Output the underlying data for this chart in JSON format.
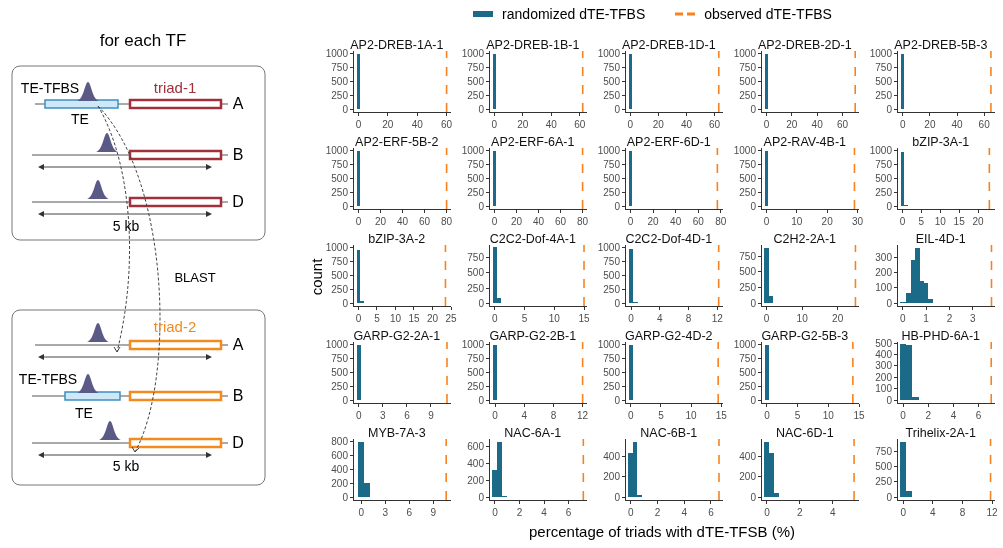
{
  "chart_data": [
    {
      "type": "other",
      "title": "for each TF",
      "annotations": [
        "TE-TFBS",
        "TE",
        "triad-1",
        "A",
        "B",
        "D",
        "5 kb",
        "BLAST",
        "triad-2",
        "A",
        "TE-TFBS",
        "TE",
        "B",
        "D",
        "5 kb"
      ]
    },
    {
      "type": "histogram",
      "title": "AP2-DREB-1A-1",
      "series": [
        {
          "name": "randomized dTE-TFBS",
          "color": "#1b6a87",
          "values": [
            1000
          ]
        }
      ],
      "bins": [
        -1.2,
        1.2
      ],
      "xlim": [
        -3,
        63
      ],
      "xticks": [
        0,
        20,
        40,
        60
      ],
      "ylim": [
        -50,
        1050
      ],
      "yticks": [
        0,
        250,
        500,
        750,
        1000
      ],
      "ref_lines": [
        {
          "axis": "x",
          "value": 60,
          "label": "observed dTE-TFBS",
          "color": "#f8821f",
          "line_style": "dashed"
        }
      ],
      "legend": "top"
    },
    {
      "type": "histogram",
      "title": "AP2-DREB-1B-1",
      "color": "#1b6a87",
      "values": [
        1000
      ],
      "bins": [
        -1.2,
        1.2
      ],
      "xlim": [
        -3,
        65
      ],
      "xticks": [
        0,
        20,
        40,
        60
      ],
      "ylim": [
        -50,
        1050
      ],
      "yticks": [
        0,
        250,
        500,
        750,
        1000
      ],
      "ref_lines": [
        {
          "axis": "x",
          "value": 62,
          "color": "#f8821f",
          "line_style": "dashed"
        }
      ]
    },
    {
      "type": "histogram",
      "title": "AP2-DREB-1D-1",
      "color": "#1b6a87",
      "values": [
        1000
      ],
      "bins": [
        -1.2,
        1.2
      ],
      "xlim": [
        -3,
        66
      ],
      "xticks": [
        0,
        20,
        40,
        60
      ],
      "ylim": [
        -50,
        1050
      ],
      "yticks": [
        0,
        250,
        500,
        750,
        1000
      ],
      "ref_lines": [
        {
          "axis": "x",
          "value": 63,
          "color": "#f8821f",
          "line_style": "dashed"
        }
      ]
    },
    {
      "type": "histogram",
      "title": "AP2-DREB-2D-1",
      "color": "#1b6a87",
      "values": [
        1000
      ],
      "bins": [
        -1.2,
        1.2
      ],
      "xlim": [
        -3.5,
        73
      ],
      "xticks": [
        0,
        20,
        40,
        60
      ],
      "ylim": [
        -50,
        1050
      ],
      "yticks": [
        0,
        250,
        500,
        750,
        1000
      ],
      "ref_lines": [
        {
          "axis": "x",
          "value": 70,
          "color": "#f8821f",
          "line_style": "dashed"
        }
      ]
    },
    {
      "type": "histogram",
      "title": "AP2-DREB-5B-3",
      "color": "#1b6a87",
      "values": [
        1000
      ],
      "bins": [
        -1.2,
        1.2
      ],
      "xlim": [
        -3.5,
        68
      ],
      "xticks": [
        0,
        20,
        40,
        60
      ],
      "ylim": [
        -50,
        1050
      ],
      "yticks": [
        0,
        250,
        500,
        750,
        1000
      ],
      "ref_lines": [
        {
          "axis": "x",
          "value": 65,
          "color": "#f8821f",
          "line_style": "dashed"
        }
      ]
    },
    {
      "type": "histogram",
      "title": "AP2-ERF-5B-2",
      "color": "#1b6a87",
      "values": [
        1000
      ],
      "bins": [
        -1.5,
        1.5
      ],
      "xlim": [
        -4,
        84
      ],
      "xticks": [
        0,
        20,
        40,
        60,
        80
      ],
      "ylim": [
        -50,
        1050
      ],
      "yticks": [
        0,
        250,
        500,
        750,
        1000
      ],
      "ref_lines": [
        {
          "axis": "x",
          "value": 80,
          "color": "#f8821f",
          "line_style": "dashed"
        }
      ]
    },
    {
      "type": "histogram",
      "title": "AP2-ERF-6A-1",
      "color": "#1b6a87",
      "values": [
        1000
      ],
      "bins": [
        -1.5,
        1.5
      ],
      "xlim": [
        -4,
        84
      ],
      "xticks": [
        0,
        20,
        40,
        60,
        80
      ],
      "ylim": [
        -50,
        1050
      ],
      "yticks": [
        0,
        250,
        500,
        750,
        1000
      ],
      "ref_lines": [
        {
          "axis": "x",
          "value": 80,
          "color": "#f8821f",
          "line_style": "dashed"
        }
      ]
    },
    {
      "type": "histogram",
      "title": "AP2-ERF-6D-1",
      "color": "#1b6a87",
      "values": [
        1000
      ],
      "bins": [
        -1.5,
        1.5
      ],
      "xlim": [
        -4,
        82
      ],
      "xticks": [
        0,
        20,
        40,
        60,
        80
      ],
      "ylim": [
        -50,
        1050
      ],
      "yticks": [
        0,
        250,
        500,
        750,
        1000
      ],
      "ref_lines": [
        {
          "axis": "x",
          "value": 77,
          "color": "#f8821f",
          "line_style": "dashed"
        }
      ]
    },
    {
      "type": "histogram",
      "title": "AP2-RAV-4B-1",
      "color": "#1b6a87",
      "values": [
        1000
      ],
      "bins": [
        -0.6,
        0.6
      ],
      "xlim": [
        -1.5,
        30.5
      ],
      "xticks": [
        0,
        10,
        20,
        30
      ],
      "ylim": [
        -50,
        1050
      ],
      "yticks": [
        0,
        250,
        500,
        750,
        1000
      ],
      "ref_lines": [
        {
          "axis": "x",
          "value": 29,
          "color": "#f8821f",
          "line_style": "dashed"
        }
      ]
    },
    {
      "type": "histogram",
      "title": "bZIP-3A-1",
      "color": "#1b6a87",
      "values": [
        980,
        20
      ],
      "bins": [
        -0.5,
        0.5,
        1.5
      ],
      "xlim": [
        -1.2,
        24.5
      ],
      "xticks": [
        0,
        5,
        10,
        15,
        20
      ],
      "ylim": [
        -50,
        1050
      ],
      "yticks": [
        0,
        250,
        500,
        750,
        1000
      ],
      "ref_lines": [
        {
          "axis": "x",
          "value": 23,
          "color": "#f8821f",
          "line_style": "dashed"
        }
      ]
    },
    {
      "type": "histogram",
      "title": "bZIP-3A-2",
      "ylabel": "count",
      "color": "#1b6a87",
      "values": [
        960,
        40
      ],
      "bins": [
        -0.5,
        0.5,
        1.5
      ],
      "xlim": [
        -1.2,
        25
      ],
      "xticks": [
        0,
        5,
        10,
        15,
        20,
        25
      ],
      "ylim": [
        -50,
        1050
      ],
      "yticks": [
        0,
        250,
        500,
        750,
        1000
      ],
      "ref_lines": [
        {
          "axis": "x",
          "value": 23.5,
          "color": "#f8821f",
          "line_style": "dashed"
        }
      ]
    },
    {
      "type": "histogram",
      "title": "C2C2-Dof-4A-1",
      "color": "#1b6a87",
      "values": [
        920,
        80
      ],
      "bins": [
        -0.35,
        0.35,
        1.05
      ],
      "xlim": [
        -0.8,
        15.5
      ],
      "xticks": [
        0,
        5,
        10,
        15
      ],
      "ylim": [
        -45,
        960
      ],
      "yticks": [
        0,
        250,
        500,
        750
      ],
      "ref_lines": [
        {
          "axis": "x",
          "value": 15,
          "color": "#f8821f",
          "line_style": "dashed"
        }
      ]
    },
    {
      "type": "histogram",
      "title": "C2C2-Dof-4D-1",
      "color": "#1b6a87",
      "values": [
        970,
        30
      ],
      "bins": [
        -0.3,
        0.3,
        0.9
      ],
      "xlim": [
        -0.7,
        12.8
      ],
      "xticks": [
        0,
        4,
        8,
        12
      ],
      "ylim": [
        -50,
        1050
      ],
      "yticks": [
        0,
        250,
        500,
        750,
        1000
      ],
      "ref_lines": [
        {
          "axis": "x",
          "value": 12.2,
          "color": "#f8821f",
          "line_style": "dashed"
        }
      ]
    },
    {
      "type": "histogram",
      "title": "C2H2-2A-1",
      "color": "#1b6a87",
      "values": [
        880,
        120
      ],
      "bins": [
        -0.6,
        0.6,
        1.8
      ],
      "xlim": [
        -1.3,
        26
      ],
      "xticks": [
        0,
        10,
        20
      ],
      "ylim": [
        -45,
        930
      ],
      "yticks": [
        0,
        250,
        500,
        750
      ],
      "ref_lines": [
        {
          "axis": "x",
          "value": 25,
          "color": "#f8821f",
          "line_style": "dashed"
        }
      ]
    },
    {
      "type": "histogram",
      "title": "EIL-4D-1",
      "color": "#1b6a87",
      "values": [
        5,
        70,
        280,
        360,
        145,
        130,
        25
      ],
      "bins": [
        -0.1,
        0.15,
        0.34,
        0.53,
        0.72,
        0.9,
        1.1,
        1.28
      ],
      "xlim": [
        -0.2,
        3.95
      ],
      "xticks": [
        0,
        1,
        2,
        3
      ],
      "ylim": [
        -18,
        380
      ],
      "yticks": [
        0,
        100,
        200,
        300
      ],
      "ref_lines": [
        {
          "axis": "x",
          "value": 3.8,
          "color": "#f8821f",
          "line_style": "dashed"
        }
      ]
    },
    {
      "type": "histogram",
      "title": "GARP-G2-2A-1",
      "color": "#1b6a87",
      "values": [
        1000
      ],
      "bins": [
        -0.25,
        0.25
      ],
      "xlim": [
        -0.6,
        11.5
      ],
      "xticks": [
        0,
        3,
        6,
        9
      ],
      "ylim": [
        -50,
        1050
      ],
      "yticks": [
        0,
        250,
        500,
        750,
        1000
      ],
      "ref_lines": [
        {
          "axis": "x",
          "value": 11,
          "color": "#f8821f",
          "line_style": "dashed"
        }
      ]
    },
    {
      "type": "histogram",
      "title": "GARP-G2-2B-1",
      "color": "#1b6a87",
      "values": [
        1000
      ],
      "bins": [
        -0.3,
        0.3
      ],
      "xlim": [
        -0.7,
        12.6
      ],
      "xticks": [
        0,
        4,
        8,
        12
      ],
      "ylim": [
        -50,
        1050
      ],
      "yticks": [
        0,
        250,
        500,
        750,
        1000
      ],
      "ref_lines": [
        {
          "axis": "x",
          "value": 12,
          "color": "#f8821f",
          "line_style": "dashed"
        }
      ]
    },
    {
      "type": "histogram",
      "title": "GARP-G2-4D-2",
      "color": "#1b6a87",
      "values": [
        1000
      ],
      "bins": [
        -0.35,
        0.35
      ],
      "xlim": [
        -0.8,
        15.3
      ],
      "xticks": [
        0,
        5,
        10,
        15
      ],
      "ylim": [
        -50,
        1050
      ],
      "yticks": [
        0,
        250,
        500,
        750,
        1000
      ],
      "ref_lines": [
        {
          "axis": "x",
          "value": 14.5,
          "color": "#f8821f",
          "line_style": "dashed"
        }
      ]
    },
    {
      "type": "histogram",
      "title": "GARP-G2-5B-3",
      "color": "#1b6a87",
      "values": [
        1000
      ],
      "bins": [
        -0.35,
        0.35
      ],
      "xlim": [
        -0.8,
        15
      ],
      "xticks": [
        0,
        5,
        10,
        15
      ],
      "ylim": [
        -50,
        1050
      ],
      "yticks": [
        0,
        250,
        500,
        750,
        1000
      ],
      "ref_lines": [
        {
          "axis": "x",
          "value": 14,
          "color": "#f8821f",
          "line_style": "dashed"
        }
      ]
    },
    {
      "type": "histogram",
      "title": "HB-PHD-6A-1",
      "color": "#1b6a87",
      "values": [
        490,
        480,
        30
      ],
      "bins": [
        -0.25,
        0.25,
        0.75,
        1.25
      ],
      "xlim": [
        -0.4,
        7.3
      ],
      "xticks": [
        0,
        2,
        4,
        6
      ],
      "ylim": [
        -25,
        510
      ],
      "yticks": [
        0,
        100,
        200,
        300,
        400,
        500
      ],
      "ref_lines": [
        {
          "axis": "x",
          "value": 7,
          "color": "#f8821f",
          "line_style": "dashed"
        }
      ]
    },
    {
      "type": "histogram",
      "title": "MYB-7A-3",
      "color": "#1b6a87",
      "values": [
        800,
        200
      ],
      "bins": [
        -0.35,
        0.35,
        1.05
      ],
      "xlim": [
        -0.9,
        11.2
      ],
      "xticks": [
        0,
        3,
        6,
        9
      ],
      "ylim": [
        -40,
        840
      ],
      "yticks": [
        0,
        200,
        400,
        600,
        800
      ],
      "ref_lines": [
        {
          "axis": "x",
          "value": 10.6,
          "color": "#f8821f",
          "line_style": "dashed"
        }
      ]
    },
    {
      "type": "histogram",
      "title": "NAC-6A-1",
      "color": "#1b6a87",
      "values": [
        320,
        660,
        20
      ],
      "bins": [
        -0.2,
        0.2,
        0.6,
        1.0
      ],
      "xlim": [
        -0.4,
        7.5
      ],
      "xticks": [
        0,
        2,
        4,
        6
      ],
      "ylim": [
        -33,
        690
      ],
      "yticks": [
        0,
        200,
        400,
        600
      ],
      "ref_lines": [
        {
          "axis": "x",
          "value": 7.2,
          "color": "#f8821f",
          "line_style": "dashed"
        }
      ]
    },
    {
      "type": "histogram",
      "title": "NAC-6B-1",
      "xlabel": "percentage of triads with dTE-TFSB (%)",
      "color": "#1b6a87",
      "values": [
        430,
        540,
        20
      ],
      "bins": [
        -0.2,
        0.15,
        0.5,
        0.85
      ],
      "xlim": [
        -0.35,
        6.9
      ],
      "xticks": [
        0,
        2,
        4,
        6
      ],
      "ylim": [
        -27,
        565
      ],
      "yticks": [
        0,
        200,
        400
      ],
      "ref_lines": [
        {
          "axis": "x",
          "value": 6.6,
          "color": "#f8821f",
          "line_style": "dashed"
        }
      ]
    },
    {
      "type": "histogram",
      "title": "NAC-6D-1",
      "color": "#1b6a87",
      "values": [
        540,
        430,
        40
      ],
      "bins": [
        -0.15,
        0.15,
        0.45,
        0.75
      ],
      "xlim": [
        -0.3,
        5.6
      ],
      "xticks": [
        0,
        2,
        4
      ],
      "ylim": [
        -27,
        565
      ],
      "yticks": [
        0,
        200,
        400
      ],
      "ref_lines": [
        {
          "axis": "x",
          "value": 5.3,
          "color": "#f8821f",
          "line_style": "dashed"
        }
      ]
    },
    {
      "type": "histogram",
      "title": "Trihelix-2A-1",
      "color": "#1b6a87",
      "values": [
        900,
        100
      ],
      "bins": [
        -0.4,
        0.4,
        1.2
      ],
      "xlim": [
        -0.7,
        12.4
      ],
      "xticks": [
        0,
        4,
        8,
        12
      ],
      "ylim": [
        -45,
        950
      ],
      "yticks": [
        0,
        250,
        500,
        750
      ],
      "ref_lines": [
        {
          "axis": "x",
          "value": 11.8,
          "color": "#f8821f",
          "line_style": "dashed"
        }
      ]
    }
  ]
}
